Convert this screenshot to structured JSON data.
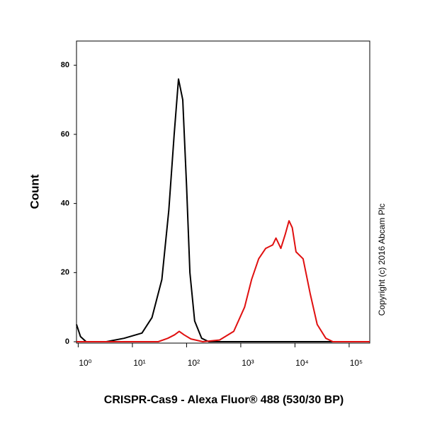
{
  "chart_data": {
    "type": "line",
    "x_label": "CRISPR-Cas9 - Alexa Fluor® 488 (530/30 BP)",
    "y_label": "Count",
    "annotation": "Copyright (c) 2016 Abcam Plc",
    "x_scale": "log",
    "xlim": [
      0.93,
      240000
    ],
    "ylim": [
      -0.4,
      87
    ],
    "xticks": [
      {
        "value": 1,
        "label": "10⁰"
      },
      {
        "value": 10,
        "label": "10¹"
      },
      {
        "value": 100,
        "label": "10²"
      },
      {
        "value": 1000,
        "label": "10³"
      },
      {
        "value": 10000,
        "label": "10⁴"
      },
      {
        "value": 100000,
        "label": "10⁵"
      }
    ],
    "yticks": [
      0,
      20,
      40,
      60,
      80
    ],
    "series": [
      {
        "color": "#000000",
        "x": [
          0.93,
          1.1,
          1.4,
          3.3,
          7,
          15,
          23,
          35,
          47,
          59,
          71,
          85,
          100,
          115,
          141,
          190,
          257,
          400,
          240000
        ],
        "values": [
          5,
          1.5,
          0,
          0,
          1,
          2.5,
          7,
          18,
          38,
          60,
          76,
          70,
          45,
          20,
          6,
          1,
          0,
          0,
          0
        ]
      },
      {
        "color": "#e01010",
        "x": [
          0.93,
          30,
          45,
          60,
          73,
          90,
          120,
          200,
          407,
          741,
          1175,
          1585,
          2138,
          2884,
          3890,
          4467,
          5495,
          6607,
          7762,
          8913,
          10471,
          14125,
          19055,
          25704,
          37153,
          50119,
          240000
        ],
        "values": [
          0,
          0,
          1,
          2,
          3,
          2,
          0.8,
          0,
          0.5,
          3,
          10,
          18,
          24,
          27,
          28,
          30,
          27,
          31,
          35,
          33,
          26,
          24,
          14,
          5,
          1,
          0,
          0
        ]
      }
    ]
  }
}
